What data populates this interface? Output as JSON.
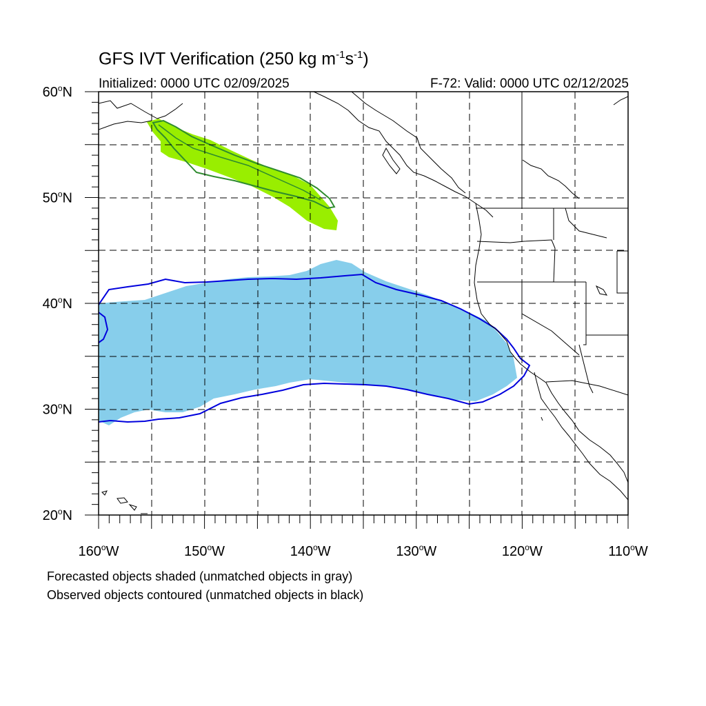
{
  "title": {
    "main": "GFS IVT Verification (250 kg m",
    "sup1": "-1",
    "mid": "s",
    "sup2": "-1",
    "end": ")"
  },
  "subtitle": {
    "initialized": "Initialized: 0000 UTC 02/09/2025",
    "valid": "F-72: Valid: 0000 UTC 02/12/2025"
  },
  "notes": {
    "forecast": "Forecasted objects shaded (unmatched objects in gray)",
    "observed": "Observed objects contoured (unmatched objects in black)"
  },
  "map": {
    "lon_range": [
      -160,
      -110
    ],
    "lat_range": [
      20,
      60
    ],
    "lat_ticks": [
      {
        "value": 60,
        "num": "60",
        "hemi": "N"
      },
      {
        "value": 50,
        "num": "50",
        "hemi": "N"
      },
      {
        "value": 40,
        "num": "40",
        "hemi": "N"
      },
      {
        "value": 30,
        "num": "30",
        "hemi": "N"
      },
      {
        "value": 20,
        "num": "20",
        "hemi": "N"
      }
    ],
    "lon_ticks": [
      {
        "value": -160,
        "num": "160",
        "hemi": "W"
      },
      {
        "value": -150,
        "num": "150",
        "hemi": "W"
      },
      {
        "value": -140,
        "num": "140",
        "hemi": "W"
      },
      {
        "value": -130,
        "num": "130",
        "hemi": "W"
      },
      {
        "value": -120,
        "num": "120",
        "hemi": "W"
      },
      {
        "value": -110,
        "num": "110",
        "hemi": "W"
      }
    ],
    "colors": {
      "forecast_matched_north": "#99ee00",
      "forecast_matched_south": "#87ceeb",
      "observed_north": "#2e8b2e",
      "observed_south": "#0000dd",
      "coastline": "#000000",
      "grid": "#000000"
    }
  }
}
